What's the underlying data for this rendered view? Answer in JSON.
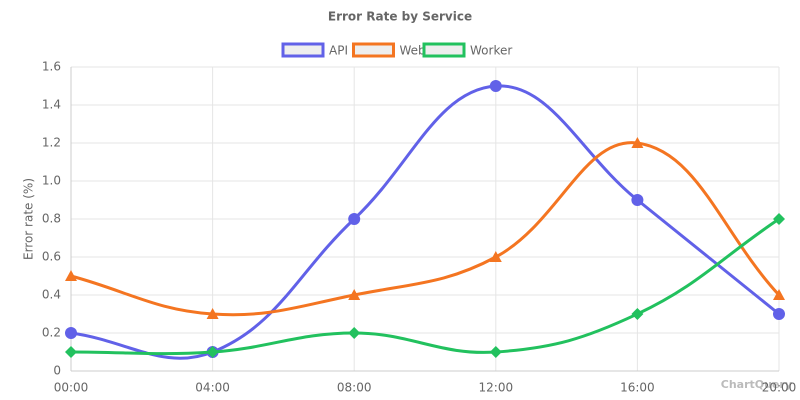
{
  "chart_data": {
    "type": "line",
    "title": "Error Rate by Service",
    "y_label": "Error rate (%)",
    "watermark": "ChartQuery",
    "categories": [
      "00:00",
      "04:00",
      "08:00",
      "12:00",
      "16:00",
      "20:00"
    ],
    "series": [
      {
        "name": "API",
        "color": "#6161e8",
        "marker": "circle",
        "values": [
          0.2,
          0.1,
          0.8,
          1.5,
          0.9,
          0.3
        ]
      },
      {
        "name": "Web",
        "color": "#f47521",
        "marker": "triangle",
        "values": [
          0.5,
          0.3,
          0.4,
          0.6,
          1.2,
          0.4
        ]
      },
      {
        "name": "Worker",
        "color": "#22c15e",
        "marker": "diamond",
        "values": [
          0.1,
          0.1,
          0.2,
          0.1,
          0.3,
          0.8
        ]
      }
    ],
    "ylim": [
      0,
      1.6
    ],
    "yticks": [
      0,
      0.2,
      0.4,
      0.6,
      0.8,
      {
        "value": 1,
        "label": "1.0"
      },
      1.2,
      1.4,
      1.6
    ],
    "grid": true,
    "legend": "top",
    "smooth": true
  }
}
